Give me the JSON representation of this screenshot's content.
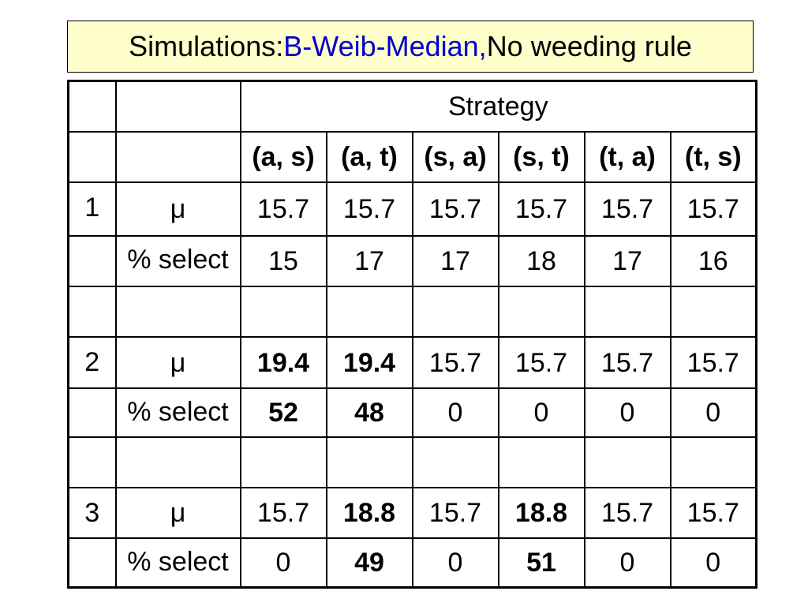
{
  "title": {
    "prefix": "Simulations: ",
    "accent": "B-Weib-Median,",
    "suffix": " No weeding rule"
  },
  "header": {
    "strategy": "Strategy",
    "columns": [
      "(a, s)",
      "(a, t)",
      "(s, a)",
      "(s, t)",
      "(t, a)",
      "(t, s)"
    ]
  },
  "labels": {
    "mu": "μ",
    "select": "% select"
  },
  "blocks": [
    {
      "index": "1",
      "mu": [
        "15.7",
        "15.7",
        "15.7",
        "15.7",
        "15.7",
        "15.7"
      ],
      "select": [
        "15",
        "17",
        "17",
        "18",
        "17",
        "16"
      ]
    },
    {
      "index": "2",
      "mu": [
        "19.4",
        "19.4",
        "15.7",
        "15.7",
        "15.7",
        "15.7"
      ],
      "select": [
        "52",
        "48",
        "0",
        "0",
        "0",
        "0"
      ]
    },
    {
      "index": "3",
      "mu": [
        "15.7",
        "18.8",
        "15.7",
        "18.8",
        "15.7",
        "15.7"
      ],
      "select": [
        "0",
        "49",
        "0",
        "51",
        "0",
        "0"
      ]
    }
  ],
  "colors": {
    "title_background": "#ffffcc",
    "highlight": "#0000dd"
  }
}
